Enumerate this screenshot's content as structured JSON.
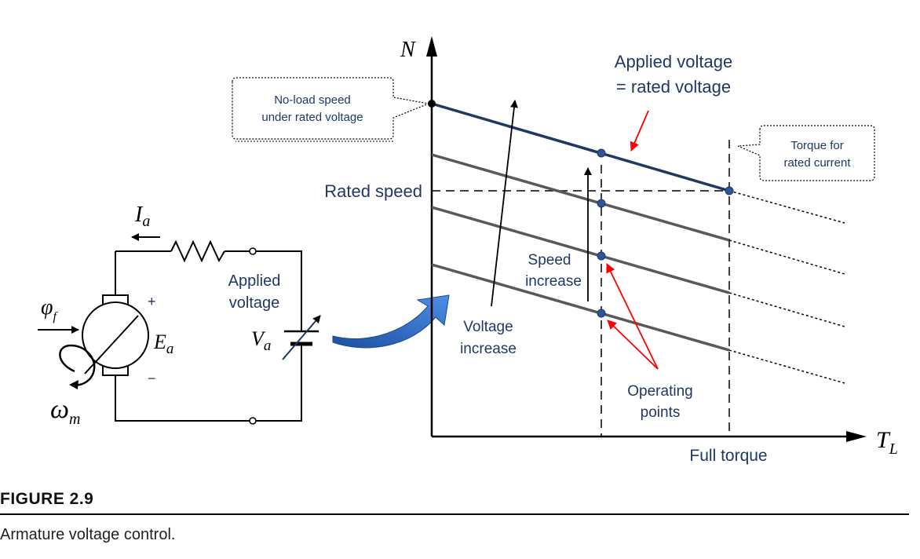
{
  "figure": {
    "label": "FIGURE 2.9",
    "caption": "Armature voltage control."
  },
  "circuit": {
    "current_symbol": "I",
    "current_sub": "a",
    "flux_symbol": "φ",
    "flux_sub": "f",
    "emf_symbol": "E",
    "emf_sub": "a",
    "speed_symbol": "ω",
    "speed_sub": "m",
    "voltage_symbol": "V",
    "voltage_sub": "a",
    "plus_sign": "+",
    "minus_sign": "−",
    "applied_voltage_line1": "Applied",
    "applied_voltage_line2": "voltage"
  },
  "graph": {
    "y_axis_label": "N",
    "x_axis_label": "T",
    "x_axis_sub": "L",
    "rated_speed_label": "Rated speed",
    "full_torque_label": "Full torque",
    "callout_noload_line1": "No-load speed",
    "callout_noload_line2": "under rated voltage",
    "callout_torque_line1": "Torque for",
    "callout_torque_line2": "rated current",
    "rated_line_label_1": "Applied voltage",
    "rated_line_label_2": "= rated voltage",
    "speed_increase_1": "Speed",
    "speed_increase_2": "increase",
    "voltage_increase_1": "Voltage",
    "voltage_increase_2": "increase",
    "operating_points_1": "Operating",
    "operating_points_2": "points"
  },
  "colors": {
    "rated_line": "#1f3864",
    "other_lines": "#595959",
    "points": "#2e5597",
    "red_arrow": "#ff0000",
    "blue_arrow": "#2f6fd0",
    "label_blue": "#1f3864"
  }
}
